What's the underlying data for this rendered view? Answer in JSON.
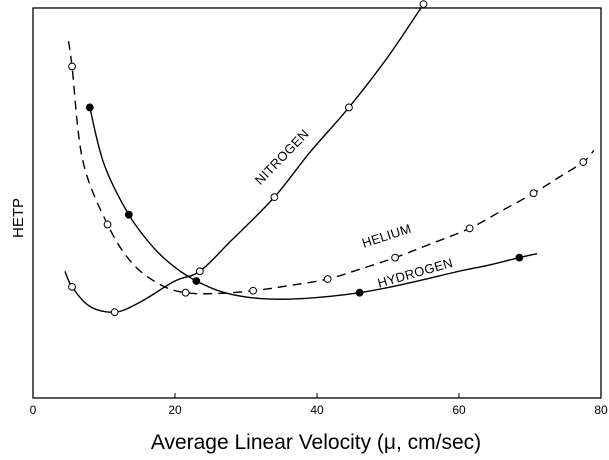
{
  "chart_data": {
    "type": "line",
    "title": "",
    "xlabel": "Average Linear Velocity (μ, cm/sec)",
    "ylabel": "HETP",
    "xlim": [
      0,
      80
    ],
    "ylim": [
      0,
      10
    ],
    "xticks": [
      0,
      20,
      40,
      60,
      80
    ],
    "grid": false,
    "series": [
      {
        "name": "NITROGEN",
        "style": "solid",
        "marker": "open",
        "x": [
          5.5,
          11.5,
          23.5,
          34,
          44.5,
          55
        ],
        "y": [
          2.85,
          2.2,
          3.25,
          5.15,
          7.45,
          10.1
        ],
        "curve_x": [
          4.5,
          5.5,
          8,
          11.5,
          15,
          20,
          23.5,
          28,
          34,
          39,
          44.5,
          50,
          55
        ],
        "curve_y": [
          3.25,
          2.85,
          2.35,
          2.2,
          2.45,
          3.0,
          3.25,
          4.05,
          5.15,
          6.3,
          7.45,
          8.75,
          10.1
        ],
        "label_x": 35.5,
        "label_y": 6.1,
        "label_angle": -46
      },
      {
        "name": "HELIUM",
        "style": "dashed",
        "marker": "open",
        "x": [
          5.5,
          10.5,
          21.5,
          31,
          41.5,
          51,
          61.5,
          70.5,
          77.5
        ],
        "y": [
          8.5,
          4.45,
          2.7,
          2.75,
          3.05,
          3.6,
          4.35,
          5.25,
          6.05
        ],
        "curve_x": [
          5,
          5.5,
          7,
          10.5,
          14,
          18,
          21.5,
          26,
          31,
          36,
          41.5,
          46,
          51,
          56,
          61.5,
          66,
          70.5,
          74,
          77.5,
          79
        ],
        "curve_y": [
          9.15,
          8.5,
          6.1,
          4.45,
          3.45,
          2.9,
          2.7,
          2.68,
          2.75,
          2.88,
          3.05,
          3.3,
          3.6,
          3.95,
          4.35,
          4.8,
          5.25,
          5.65,
          6.05,
          6.35
        ],
        "label_x": 50,
        "label_y": 4.05,
        "label_angle": -18
      },
      {
        "name": "HYDROGEN",
        "style": "solid",
        "marker": "filled",
        "x": [
          8,
          13.5,
          23,
          46,
          68.5
        ],
        "y": [
          7.45,
          4.7,
          3.0,
          2.7,
          3.6
        ],
        "curve_x": [
          8,
          10,
          13.5,
          17,
          20,
          23,
          27,
          32,
          38,
          46,
          53,
          60,
          64,
          68.5,
          71
        ],
        "curve_y": [
          7.45,
          6.0,
          4.7,
          3.85,
          3.35,
          3.0,
          2.7,
          2.55,
          2.55,
          2.7,
          2.95,
          3.25,
          3.4,
          3.6,
          3.7
        ],
        "label_x": 54,
        "label_y": 3.1,
        "label_angle": -16
      }
    ]
  }
}
